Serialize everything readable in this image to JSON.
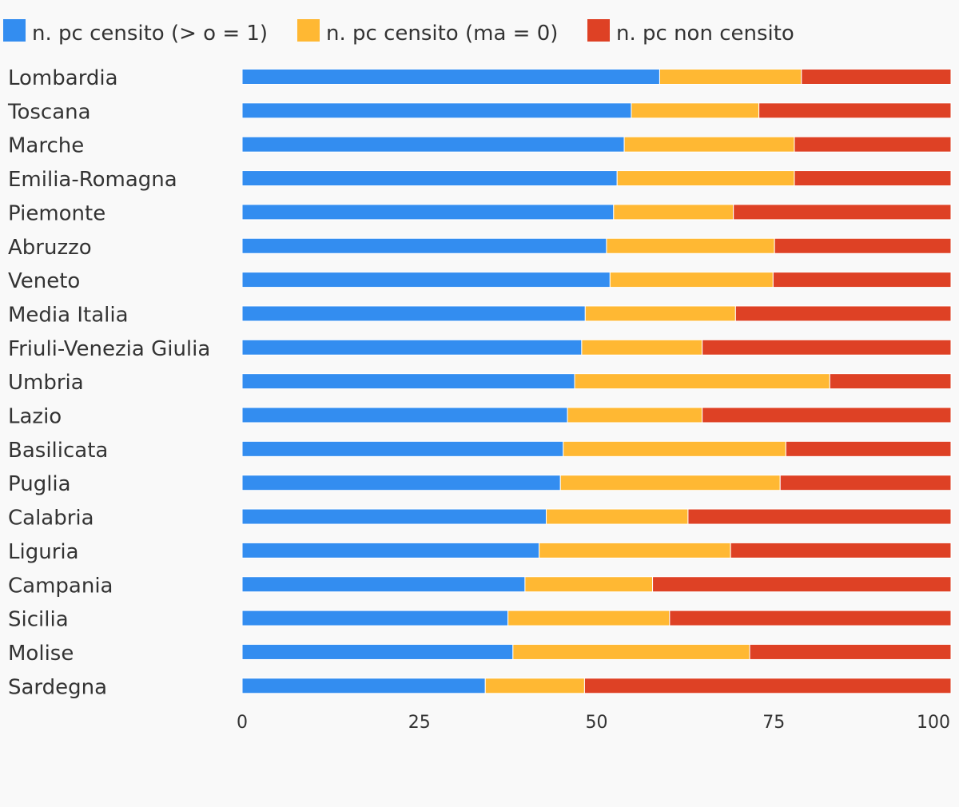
{
  "chart_data": {
    "type": "bar",
    "orientation": "horizontal",
    "stacked": true,
    "legend_position": "top-left",
    "grid": false,
    "xlim": [
      0,
      100
    ],
    "x_ticks": [
      "0",
      "25",
      "50",
      "75",
      "100"
    ],
    "x_tick_values": [
      0,
      25,
      50,
      75,
      100
    ],
    "categories": [
      "Lombardia",
      "Toscana",
      "Marche",
      "Emilia-Romagna",
      "Piemonte",
      "Abruzzo",
      "Veneto",
      "Media Italia",
      "Friuli-Venezia Giulia",
      "Umbria",
      "Lazio",
      "Basilicata",
      "Puglia",
      "Calabria",
      "Liguria",
      "Campania",
      "Sicilia",
      "Molise",
      "Sardegna"
    ],
    "series": [
      {
        "name": "n. pc censito (> o = 1)",
        "color": "#338df0",
        "values": [
          58.9,
          54.9,
          53.9,
          52.9,
          52.4,
          51.4,
          51.9,
          48.4,
          47.9,
          46.9,
          45.9,
          45.3,
          44.9,
          42.9,
          41.9,
          39.9,
          37.5,
          38.2,
          34.3
        ]
      },
      {
        "name": "n. pc censito (ma = 0)",
        "color": "#ffb833",
        "values": [
          20.0,
          18.0,
          24.0,
          25.0,
          16.9,
          23.7,
          23.0,
          21.2,
          17.0,
          36.0,
          19.0,
          31.4,
          31.0,
          20.0,
          27.0,
          18.0,
          22.8,
          33.4,
          14.0
        ]
      },
      {
        "name": "n. pc non censito",
        "color": "#de4125",
        "values": [
          21.1,
          27.1,
          22.1,
          22.1,
          30.7,
          24.9,
          25.1,
          30.4,
          35.1,
          17.1,
          35.1,
          23.3,
          24.1,
          37.1,
          31.1,
          42.1,
          39.7,
          28.4,
          51.7
        ]
      }
    ]
  }
}
